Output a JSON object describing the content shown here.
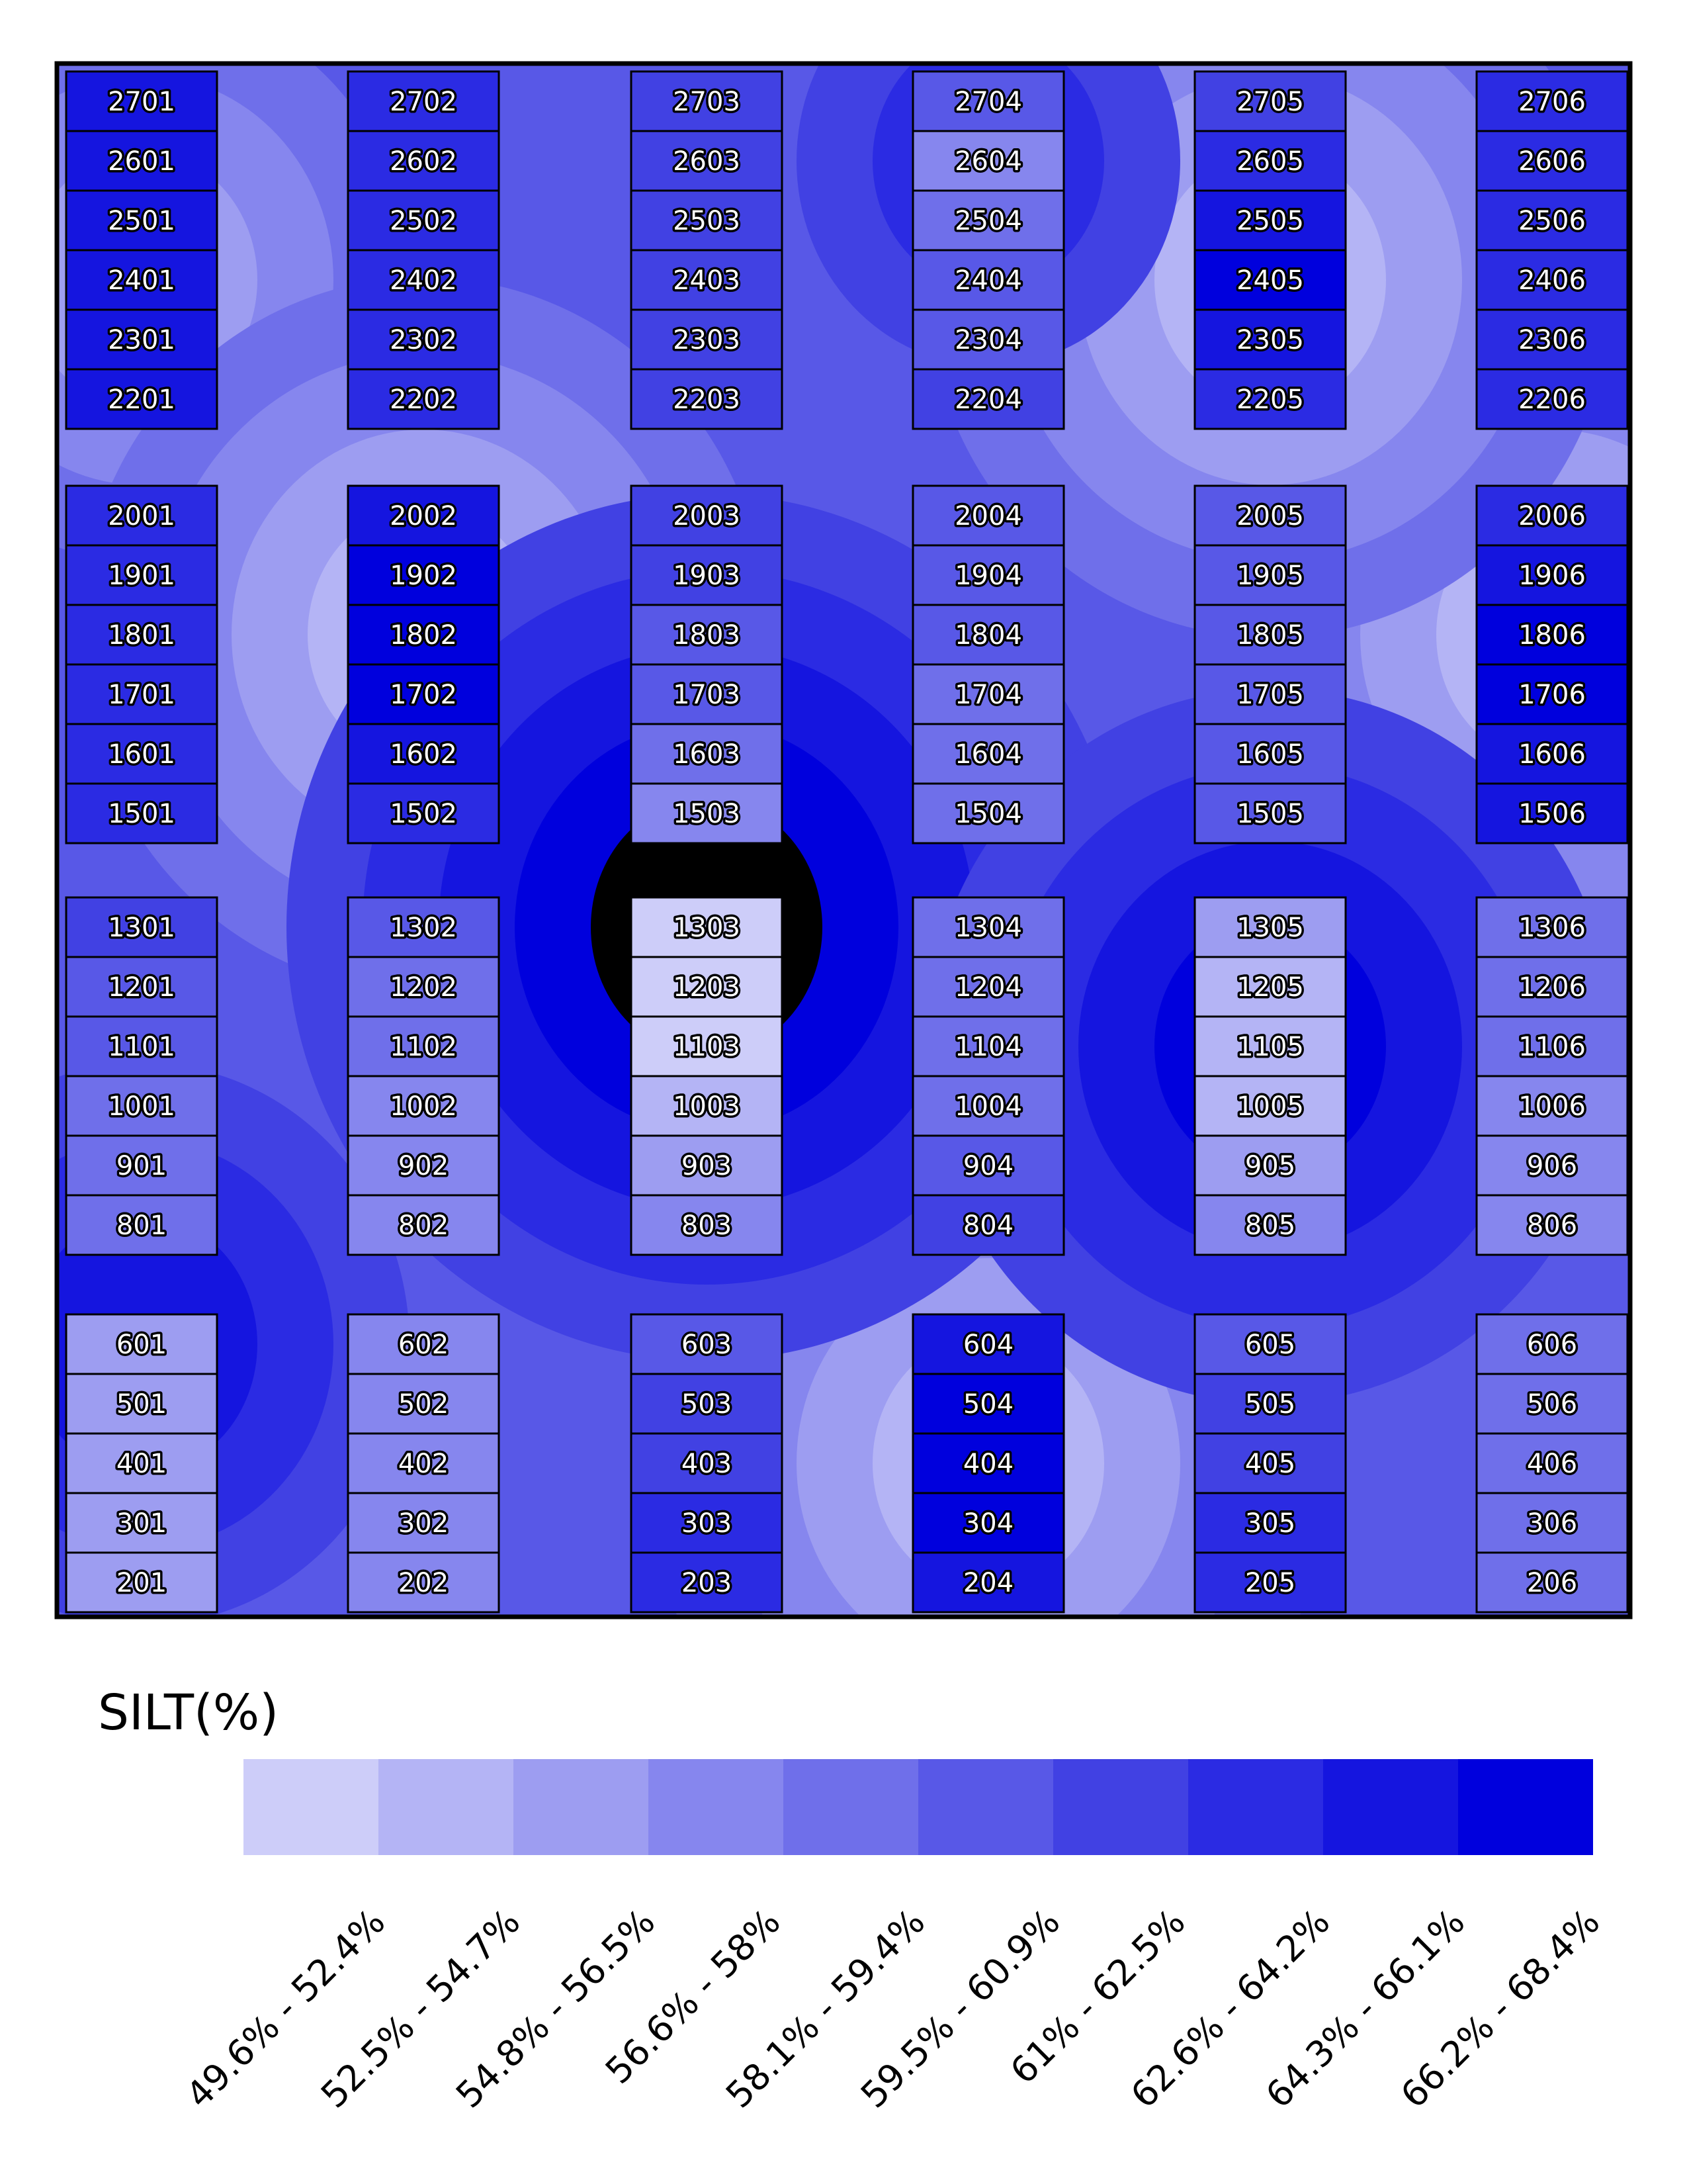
{
  "legend": {
    "title": "SILT(%)",
    "classes": [
      {
        "label": "49.6% - 52.4%",
        "color": "#cdcdf9"
      },
      {
        "label": "52.5% - 54.7%",
        "color": "#b4b4f5"
      },
      {
        "label": "54.8% - 56.5%",
        "color": "#9d9df1"
      },
      {
        "label": "56.6% - 58%",
        "color": "#8686ee"
      },
      {
        "label": "58.1% - 59.4%",
        "color": "#6f6fea"
      },
      {
        "label": "59.5% - 60.9%",
        "color": "#5858e7"
      },
      {
        "label": "61% - 62.5%",
        "color": "#4141e3"
      },
      {
        "label": "62.6% - 64.2%",
        "color": "#2b2be3"
      },
      {
        "label": "64.3% - 66.1%",
        "color": "#1515df"
      },
      {
        "label": "66.2% - 68.4%",
        "color": "#0000dd"
      }
    ]
  },
  "map": {
    "hot_spots": [
      {
        "plot": "2401",
        "level": 8
      },
      {
        "plot": "1802",
        "level": 9
      },
      {
        "plot": "1806",
        "level": 9
      },
      {
        "plot": "2405",
        "level": 9
      },
      {
        "plot": "404",
        "level": 9
      },
      {
        "plot": "1303",
        "level": 0
      },
      {
        "plot": "1105",
        "level": 1
      },
      {
        "plot": "2604",
        "level": 3
      },
      {
        "plot": "601",
        "level": 2
      }
    ],
    "blocks": [
      {
        "col": 0,
        "group": 0,
        "plots": [
          "2701",
          "2601",
          "2501",
          "2401",
          "2301",
          "2201"
        ],
        "levels": [
          8,
          8,
          8,
          8,
          8,
          8
        ]
      },
      {
        "col": 1,
        "group": 0,
        "plots": [
          "2702",
          "2602",
          "2502",
          "2402",
          "2302",
          "2202"
        ],
        "levels": [
          7,
          7,
          7,
          7,
          7,
          7
        ]
      },
      {
        "col": 2,
        "group": 0,
        "plots": [
          "2703",
          "2603",
          "2503",
          "2403",
          "2303",
          "2203"
        ],
        "levels": [
          6,
          6,
          6,
          6,
          6,
          6
        ]
      },
      {
        "col": 3,
        "group": 0,
        "plots": [
          "2704",
          "2604",
          "2504",
          "2404",
          "2304",
          "2204"
        ],
        "levels": [
          5,
          3,
          4,
          5,
          5,
          6
        ]
      },
      {
        "col": 4,
        "group": 0,
        "plots": [
          "2705",
          "2605",
          "2505",
          "2405",
          "2305",
          "2205"
        ],
        "levels": [
          6,
          7,
          8,
          9,
          8,
          7
        ]
      },
      {
        "col": 5,
        "group": 0,
        "plots": [
          "2706",
          "2606",
          "2506",
          "2406",
          "2306",
          "2206"
        ],
        "levels": [
          7,
          7,
          7,
          7,
          7,
          7
        ]
      },
      {
        "col": 0,
        "group": 1,
        "plots": [
          "2001",
          "1901",
          "1801",
          "1701",
          "1601",
          "1501"
        ],
        "levels": [
          7,
          7,
          7,
          7,
          7,
          7
        ]
      },
      {
        "col": 1,
        "group": 1,
        "plots": [
          "2002",
          "1902",
          "1802",
          "1702",
          "1602",
          "1502"
        ],
        "levels": [
          8,
          9,
          9,
          9,
          8,
          7
        ]
      },
      {
        "col": 2,
        "group": 1,
        "plots": [
          "2003",
          "1903",
          "1803",
          "1703",
          "1603",
          "1503"
        ],
        "levels": [
          6,
          6,
          5,
          5,
          4,
          3
        ]
      },
      {
        "col": 3,
        "group": 1,
        "plots": [
          "2004",
          "1904",
          "1804",
          "1704",
          "1604",
          "1504"
        ],
        "levels": [
          5,
          5,
          5,
          4,
          4,
          4
        ]
      },
      {
        "col": 4,
        "group": 1,
        "plots": [
          "2005",
          "1905",
          "1805",
          "1705",
          "1605",
          "1505"
        ],
        "levels": [
          5,
          5,
          5,
          5,
          5,
          5
        ]
      },
      {
        "col": 5,
        "group": 1,
        "plots": [
          "2006",
          "1906",
          "1806",
          "1706",
          "1606",
          "1506"
        ],
        "levels": [
          7,
          8,
          9,
          9,
          8,
          8
        ]
      },
      {
        "col": 0,
        "group": 2,
        "plots": [
          "1301",
          "1201",
          "1101",
          "1001",
          "901",
          "801"
        ],
        "levels": [
          6,
          5,
          5,
          4,
          4,
          4
        ]
      },
      {
        "col": 1,
        "group": 2,
        "plots": [
          "1302",
          "1202",
          "1102",
          "1002",
          "902",
          "802"
        ],
        "levels": [
          5,
          4,
          4,
          3,
          3,
          3
        ]
      },
      {
        "col": 2,
        "group": 2,
        "plots": [
          "1303",
          "1203",
          "1103",
          "1003",
          "903",
          "803"
        ],
        "levels": [
          0,
          0,
          0,
          1,
          2,
          3
        ]
      },
      {
        "col": 3,
        "group": 2,
        "plots": [
          "1304",
          "1204",
          "1104",
          "1004",
          "904",
          "804"
        ],
        "levels": [
          4,
          4,
          4,
          4,
          5,
          6
        ]
      },
      {
        "col": 4,
        "group": 2,
        "plots": [
          "1305",
          "1205",
          "1105",
          "1005",
          "905",
          "805"
        ],
        "levels": [
          2,
          1,
          1,
          1,
          2,
          3
        ]
      },
      {
        "col": 5,
        "group": 2,
        "plots": [
          "1306",
          "1206",
          "1106",
          "1006",
          "906",
          "806"
        ],
        "levels": [
          4,
          4,
          4,
          3,
          3,
          3
        ]
      },
      {
        "col": 0,
        "group": 3,
        "plots": [
          "601",
          "501",
          "401",
          "301",
          "201"
        ],
        "levels": [
          2,
          2,
          2,
          2,
          2
        ]
      },
      {
        "col": 1,
        "group": 3,
        "plots": [
          "602",
          "502",
          "402",
          "302",
          "202"
        ],
        "levels": [
          3,
          3,
          3,
          3,
          3
        ]
      },
      {
        "col": 2,
        "group": 3,
        "plots": [
          "603",
          "503",
          "403",
          "303",
          "203"
        ],
        "levels": [
          5,
          6,
          6,
          7,
          7
        ]
      },
      {
        "col": 3,
        "group": 3,
        "plots": [
          "604",
          "504",
          "404",
          "304",
          "204"
        ],
        "levels": [
          8,
          9,
          9,
          9,
          8
        ]
      },
      {
        "col": 4,
        "group": 3,
        "plots": [
          "605",
          "505",
          "405",
          "305",
          "205"
        ],
        "levels": [
          5,
          6,
          6,
          7,
          7
        ]
      },
      {
        "col": 5,
        "group": 3,
        "plots": [
          "606",
          "506",
          "406",
          "306",
          "206"
        ],
        "levels": [
          4,
          4,
          4,
          4,
          4
        ]
      }
    ]
  }
}
